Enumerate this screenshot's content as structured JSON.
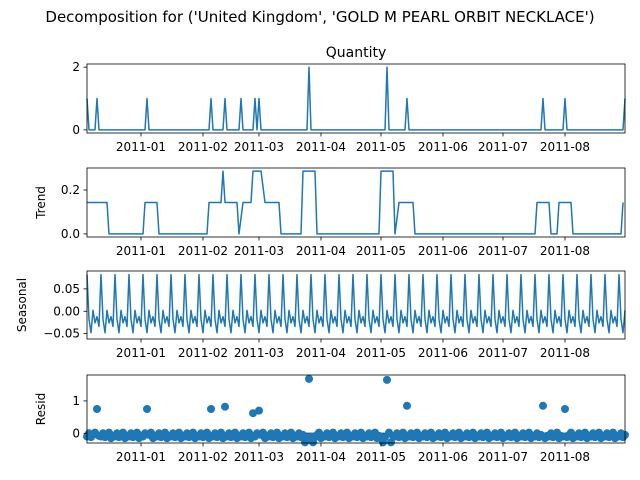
{
  "chart_data": {
    "suptitle": "Decomposition for ('United Kingdom', 'GOLD M PEARL  ORBIT NECKLACE')",
    "x_start": "2010-12-05",
    "x_end": "2011-08-31",
    "x_tick_labels": [
      "2011-01",
      "2011-02",
      "2011-03",
      "2011-04",
      "2011-05",
      "2011-06",
      "2011-07",
      "2011-08"
    ],
    "x_tick_dates": [
      "2011-01-01",
      "2011-02-01",
      "2011-03-01",
      "2011-04-01",
      "2011-05-01",
      "2011-06-01",
      "2011-07-01",
      "2011-08-01"
    ],
    "panels": [
      {
        "name": "observed",
        "title": "Quantity",
        "ylabel": "",
        "type": "line",
        "ylim": [
          -0.1,
          2.1
        ],
        "yticks": [
          0,
          2
        ],
        "ytick_labels": [
          "0",
          "2"
        ],
        "base": 0,
        "points": [
          {
            "x": "2010-12-05",
            "y": 1
          },
          {
            "x": "2010-12-10",
            "y": 1
          },
          {
            "x": "2011-01-04",
            "y": 1
          },
          {
            "x": "2011-02-05",
            "y": 1
          },
          {
            "x": "2011-02-12",
            "y": 1
          },
          {
            "x": "2011-02-20",
            "y": 1
          },
          {
            "x": "2011-02-27",
            "y": 1
          },
          {
            "x": "2011-03-01",
            "y": 1
          },
          {
            "x": "2011-03-26",
            "y": 2
          },
          {
            "x": "2011-05-04",
            "y": 2
          },
          {
            "x": "2011-05-14",
            "y": 1
          },
          {
            "x": "2011-07-21",
            "y": 1
          },
          {
            "x": "2011-08-01",
            "y": 1
          },
          {
            "x": "2011-08-31",
            "y": 1
          }
        ]
      },
      {
        "name": "trend",
        "title": "",
        "ylabel": "Trend",
        "type": "line",
        "ylim": [
          -0.014,
          0.3
        ],
        "yticks": [
          0.0,
          0.2
        ],
        "ytick_labels": [
          "0.0",
          "0.2"
        ],
        "series": [
          {
            "x": "2010-12-05",
            "y": 0.143
          },
          {
            "x": "2010-12-15",
            "y": 0.143
          },
          {
            "x": "2010-12-16",
            "y": 0.0
          },
          {
            "x": "2011-01-02",
            "y": 0.0
          },
          {
            "x": "2011-01-03",
            "y": 0.143
          },
          {
            "x": "2011-01-09",
            "y": 0.143
          },
          {
            "x": "2011-01-10",
            "y": 0.0
          },
          {
            "x": "2011-02-03",
            "y": 0.0
          },
          {
            "x": "2011-02-04",
            "y": 0.143
          },
          {
            "x": "2011-02-10",
            "y": 0.143
          },
          {
            "x": "2011-02-11",
            "y": 0.286
          },
          {
            "x": "2011-02-12",
            "y": 0.143
          },
          {
            "x": "2011-02-18",
            "y": 0.143
          },
          {
            "x": "2011-02-19",
            "y": 0.0
          },
          {
            "x": "2011-02-21",
            "y": 0.143
          },
          {
            "x": "2011-02-25",
            "y": 0.143
          },
          {
            "x": "2011-02-26",
            "y": 0.286
          },
          {
            "x": "2011-03-02",
            "y": 0.286
          },
          {
            "x": "2011-03-04",
            "y": 0.143
          },
          {
            "x": "2011-03-11",
            "y": 0.143
          },
          {
            "x": "2011-03-12",
            "y": 0.0
          },
          {
            "x": "2011-03-22",
            "y": 0.0
          },
          {
            "x": "2011-03-23",
            "y": 0.286
          },
          {
            "x": "2011-03-29",
            "y": 0.286
          },
          {
            "x": "2011-03-30",
            "y": 0.0
          },
          {
            "x": "2011-04-30",
            "y": 0.0
          },
          {
            "x": "2011-05-01",
            "y": 0.286
          },
          {
            "x": "2011-05-07",
            "y": 0.286
          },
          {
            "x": "2011-05-08",
            "y": 0.0
          },
          {
            "x": "2011-05-10",
            "y": 0.143
          },
          {
            "x": "2011-05-17",
            "y": 0.143
          },
          {
            "x": "2011-05-18",
            "y": 0.0
          },
          {
            "x": "2011-07-17",
            "y": 0.0
          },
          {
            "x": "2011-07-18",
            "y": 0.143
          },
          {
            "x": "2011-07-24",
            "y": 0.143
          },
          {
            "x": "2011-07-25",
            "y": 0.0
          },
          {
            "x": "2011-07-28",
            "y": 0.0
          },
          {
            "x": "2011-07-29",
            "y": 0.143
          },
          {
            "x": "2011-08-04",
            "y": 0.143
          },
          {
            "x": "2011-08-05",
            "y": 0.0
          },
          {
            "x": "2011-08-29",
            "y": 0.0
          },
          {
            "x": "2011-08-30",
            "y": 0.143
          }
        ]
      },
      {
        "name": "seasonal",
        "title": "",
        "ylabel": "Seasonal",
        "type": "line",
        "ylim": [
          -0.062,
          0.09
        ],
        "yticks": [
          -0.05,
          0.0,
          0.05
        ],
        "ytick_labels": [
          "−0.05",
          "0.00",
          "0.05"
        ],
        "period": 7,
        "pattern": [
          0.082,
          -0.018,
          -0.048,
          0.002,
          -0.026,
          -0.012,
          -0.034
        ]
      },
      {
        "name": "resid",
        "title": "",
        "ylabel": "Resid",
        "type": "scatter",
        "ylim": [
          -0.3,
          1.8
        ],
        "yticks": [
          0,
          1
        ],
        "ytick_labels": [
          "0",
          "1"
        ],
        "baseline_values": [
          -0.1,
          0.0,
          -0.12,
          -0.05,
          0.02,
          -0.15,
          -0.08
        ],
        "points": [
          {
            "x": "2010-12-10",
            "y": 0.75
          },
          {
            "x": "2011-01-04",
            "y": 0.75
          },
          {
            "x": "2011-02-05",
            "y": 0.75
          },
          {
            "x": "2011-02-12",
            "y": 0.82
          },
          {
            "x": "2011-02-26",
            "y": 0.62
          },
          {
            "x": "2011-03-01",
            "y": 0.7
          },
          {
            "x": "2011-03-26",
            "y": 1.68
          },
          {
            "x": "2011-05-04",
            "y": 1.65
          },
          {
            "x": "2011-05-14",
            "y": 0.85
          },
          {
            "x": "2011-07-21",
            "y": 0.85
          },
          {
            "x": "2011-08-01",
            "y": 0.75
          },
          {
            "x": "2011-03-24",
            "y": -0.28
          },
          {
            "x": "2011-03-28",
            "y": -0.28
          },
          {
            "x": "2011-05-02",
            "y": -0.28
          },
          {
            "x": "2011-05-06",
            "y": -0.28
          }
        ]
      }
    ]
  }
}
